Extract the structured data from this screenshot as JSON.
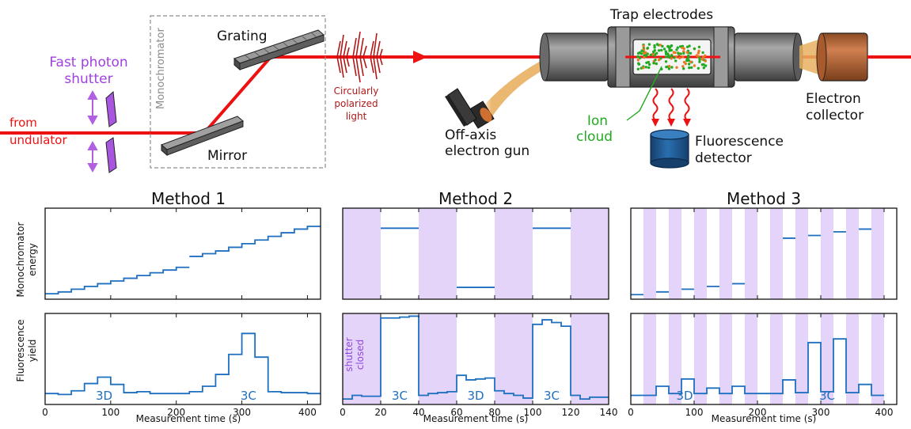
{
  "apparatus": {
    "labels": {
      "fast_photon_shutter_line1": "Fast photon",
      "fast_photon_shutter_line2": "shutter",
      "from": "from",
      "undulator": "undulator",
      "monochromator": "Monochromator",
      "grating": "Grating",
      "mirror": "Mirror",
      "circularly_line1": "Circularly",
      "circularly_line2": "polarized",
      "circularly_line3": "light",
      "gun_line1": "Off-axis",
      "gun_line2": "electron gun",
      "trap_electrodes": "Trap electrodes",
      "ion_line1": "Ion",
      "ion_line2": "cloud",
      "fluor_line1": "Fluorescence",
      "fluor_line2": "detector",
      "collector_line1": "Electron",
      "collector_line2": "collector"
    },
    "colors": {
      "beam": "#ee1111",
      "shutter": "#b060e0",
      "ion_green": "#22aa22",
      "electron_beam": "#e8b060",
      "detector": "#1f5f9f",
      "collector": "#c06a38",
      "electrode": "#8c8c8c"
    }
  },
  "panels": {
    "method_titles": [
      "Method 1",
      "Method 2",
      "Method 3"
    ],
    "ylabel_top_line1": "Monochromator",
    "ylabel_top_line2": "energy",
    "ylabel_bottom_line1": "Fluorescence",
    "ylabel_bottom_line2": "yield",
    "xlabel": "Measurement time (s)",
    "shutter_closed_line1": "shutter",
    "shutter_closed_line2": "closed",
    "line_color": "#1f6fc0",
    "shade_color": "#e4d4fa"
  },
  "chart_data": [
    {
      "type": "line",
      "title": "Method 1",
      "xlabel": "Measurement time (s)",
      "ylabel": "Monochromator energy",
      "xlim": [
        0,
        420
      ],
      "xticks": [
        0,
        100,
        200,
        300,
        400
      ],
      "ylim": [
        0,
        1
      ],
      "shaded": [],
      "steps": [
        [
          0,
          20,
          0.06
        ],
        [
          20,
          40,
          0.08
        ],
        [
          40,
          60,
          0.11
        ],
        [
          60,
          80,
          0.14
        ],
        [
          80,
          100,
          0.17
        ],
        [
          100,
          120,
          0.2
        ],
        [
          120,
          140,
          0.23
        ],
        [
          140,
          160,
          0.26
        ],
        [
          160,
          180,
          0.29
        ],
        [
          180,
          200,
          0.32
        ],
        [
          200,
          220,
          0.35
        ],
        [
          220,
          240,
          0.47
        ],
        [
          240,
          260,
          0.5
        ],
        [
          260,
          280,
          0.53
        ],
        [
          280,
          300,
          0.57
        ],
        [
          300,
          320,
          0.61
        ],
        [
          320,
          340,
          0.65
        ],
        [
          340,
          360,
          0.69
        ],
        [
          360,
          380,
          0.73
        ],
        [
          380,
          400,
          0.77
        ],
        [
          400,
          420,
          0.8
        ]
      ],
      "annotations": []
    },
    {
      "type": "line",
      "title": "Method 1",
      "xlabel": "Measurement time (s)",
      "ylabel": "Fluorescence yield",
      "xlim": [
        0,
        420
      ],
      "xticks": [
        0,
        100,
        200,
        300,
        400
      ],
      "ylim": [
        0,
        1
      ],
      "shaded": [],
      "steps": [
        [
          0,
          20,
          0.12
        ],
        [
          20,
          40,
          0.11
        ],
        [
          40,
          60,
          0.15
        ],
        [
          60,
          80,
          0.23
        ],
        [
          80,
          100,
          0.3
        ],
        [
          100,
          120,
          0.22
        ],
        [
          120,
          140,
          0.13
        ],
        [
          140,
          160,
          0.14
        ],
        [
          160,
          180,
          0.12
        ],
        [
          180,
          200,
          0.12
        ],
        [
          200,
          220,
          0.12
        ],
        [
          220,
          240,
          0.14
        ],
        [
          240,
          260,
          0.2
        ],
        [
          260,
          280,
          0.33
        ],
        [
          280,
          300,
          0.55
        ],
        [
          300,
          320,
          0.78
        ],
        [
          320,
          340,
          0.52
        ],
        [
          340,
          360,
          0.14
        ],
        [
          360,
          380,
          0.13
        ],
        [
          380,
          400,
          0.13
        ],
        [
          400,
          420,
          0.12
        ]
      ],
      "annotations": [
        {
          "x": 90,
          "text": "3D"
        },
        {
          "x": 310,
          "text": "3C"
        }
      ]
    },
    {
      "type": "line",
      "title": "Method 2",
      "xlabel": "Measurement time (s)",
      "ylabel": "Monochromator energy",
      "xlim": [
        0,
        140
      ],
      "xticks": [
        0,
        20,
        40,
        60,
        80,
        100,
        120,
        140
      ],
      "ylim": [
        0,
        1
      ],
      "shaded": [
        [
          0,
          20
        ],
        [
          40,
          60
        ],
        [
          80,
          100
        ],
        [
          120,
          140
        ]
      ],
      "steps": [
        [
          20,
          40,
          0.78
        ],
        [
          60,
          80,
          0.13
        ],
        [
          100,
          120,
          0.78
        ]
      ],
      "annotations": []
    },
    {
      "type": "line",
      "title": "Method 2",
      "xlabel": "Measurement time (s)",
      "ylabel": "Fluorescence yield",
      "xlim": [
        0,
        140
      ],
      "xticks": [
        0,
        20,
        40,
        60,
        80,
        100,
        120,
        140
      ],
      "ylim": [
        0,
        1
      ],
      "shaded": [
        [
          0,
          20
        ],
        [
          40,
          60
        ],
        [
          80,
          100
        ],
        [
          120,
          140
        ]
      ],
      "steps": [
        [
          0,
          5,
          0.06
        ],
        [
          5,
          10,
          0.1
        ],
        [
          10,
          20,
          0.09
        ],
        [
          20,
          30,
          0.95
        ],
        [
          30,
          35,
          0.96
        ],
        [
          35,
          40,
          0.97
        ],
        [
          40,
          45,
          0.1
        ],
        [
          45,
          50,
          0.12
        ],
        [
          50,
          55,
          0.13
        ],
        [
          55,
          60,
          0.14
        ],
        [
          60,
          65,
          0.32
        ],
        [
          65,
          70,
          0.27
        ],
        [
          70,
          75,
          0.28
        ],
        [
          75,
          80,
          0.29
        ],
        [
          80,
          85,
          0.15
        ],
        [
          85,
          90,
          0.12
        ],
        [
          90,
          95,
          0.1
        ],
        [
          95,
          100,
          0.07
        ],
        [
          100,
          105,
          0.88
        ],
        [
          105,
          110,
          0.93
        ],
        [
          110,
          115,
          0.9
        ],
        [
          115,
          120,
          0.86
        ],
        [
          120,
          125,
          0.1
        ],
        [
          125,
          130,
          0.06
        ],
        [
          130,
          135,
          0.08
        ],
        [
          135,
          140,
          0.08
        ]
      ],
      "annotations": [
        {
          "x": 30,
          "text": "3C"
        },
        {
          "x": 70,
          "text": "3D"
        },
        {
          "x": 110,
          "text": "3C"
        }
      ]
    },
    {
      "type": "line",
      "title": "Method 3",
      "xlabel": "Measurement time (s)",
      "ylabel": "Monochromator energy",
      "xlim": [
        0,
        420
      ],
      "xticks": [
        0,
        100,
        200,
        300,
        400
      ],
      "ylim": [
        0,
        1
      ],
      "shaded": [
        [
          20,
          40
        ],
        [
          60,
          80
        ],
        [
          100,
          120
        ],
        [
          140,
          160
        ],
        [
          180,
          200
        ],
        [
          220,
          240
        ],
        [
          260,
          280
        ],
        [
          300,
          320
        ],
        [
          340,
          360
        ],
        [
          380,
          400
        ]
      ],
      "steps": [
        [
          0,
          20,
          0.05
        ],
        [
          40,
          60,
          0.08
        ],
        [
          80,
          100,
          0.11
        ],
        [
          120,
          140,
          0.14
        ],
        [
          160,
          180,
          0.17
        ],
        [
          240,
          260,
          0.67
        ],
        [
          280,
          300,
          0.7
        ],
        [
          320,
          340,
          0.74
        ],
        [
          360,
          380,
          0.77
        ]
      ],
      "annotations": []
    },
    {
      "type": "line",
      "title": "Method 3",
      "xlabel": "Measurement time (s)",
      "ylabel": "Fluorescence yield",
      "xlim": [
        0,
        420
      ],
      "xticks": [
        0,
        100,
        200,
        300,
        400
      ],
      "ylim": [
        0,
        1
      ],
      "shaded": [
        [
          20,
          40
        ],
        [
          60,
          80
        ],
        [
          100,
          120
        ],
        [
          140,
          160
        ],
        [
          180,
          200
        ],
        [
          220,
          240
        ],
        [
          260,
          280
        ],
        [
          300,
          320
        ],
        [
          340,
          360
        ],
        [
          380,
          400
        ]
      ],
      "steps": [
        [
          0,
          20,
          0.1
        ],
        [
          20,
          40,
          0.1
        ],
        [
          40,
          60,
          0.2
        ],
        [
          60,
          80,
          0.12
        ],
        [
          80,
          100,
          0.28
        ],
        [
          100,
          120,
          0.12
        ],
        [
          120,
          140,
          0.18
        ],
        [
          140,
          160,
          0.12
        ],
        [
          160,
          180,
          0.2
        ],
        [
          180,
          200,
          0.12
        ],
        [
          200,
          220,
          0.12
        ],
        [
          220,
          240,
          0.12
        ],
        [
          240,
          260,
          0.27
        ],
        [
          260,
          280,
          0.13
        ],
        [
          280,
          300,
          0.68
        ],
        [
          300,
          320,
          0.14
        ],
        [
          320,
          340,
          0.72
        ],
        [
          340,
          360,
          0.13
        ],
        [
          360,
          380,
          0.22
        ],
        [
          380,
          400,
          0.1
        ]
      ],
      "annotations": [
        {
          "x": 85,
          "text": "3D"
        },
        {
          "x": 310,
          "text": "3C"
        }
      ]
    }
  ]
}
